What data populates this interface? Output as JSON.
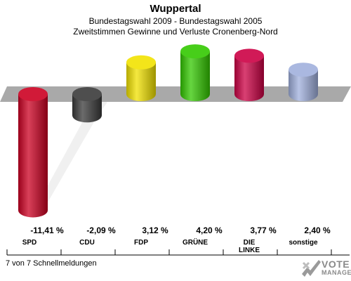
{
  "header": {
    "title": "Wuppertal",
    "subtitle_line1": "Bundestagswahl 2009 - Bundestagswahl 2005",
    "subtitle_line2": "Zweitstimmen Gewinne und Verluste Cronenberg-Nord"
  },
  "footer": {
    "status": "7 von 7 Schnellmeldungen"
  },
  "logo": {
    "line1": "VOTE",
    "line2": "MANAGER"
  },
  "chart_data": {
    "type": "bar",
    "title": "Wuppertal",
    "categories": [
      "SPD",
      "CDU",
      "FDP",
      "GRÜNE",
      "DIE LINKE",
      "sonstige"
    ],
    "category_lines": [
      [
        "SPD"
      ],
      [
        "CDU"
      ],
      [
        "FDP"
      ],
      [
        "GRÜNE"
      ],
      [
        "DIE",
        "LINKE"
      ],
      [
        "sonstige"
      ]
    ],
    "values": [
      -11.41,
      -2.09,
      3.12,
      4.2,
      3.77,
      2.4
    ],
    "value_labels": [
      "-11,41 %",
      "-2,09 %",
      "3,12 %",
      "4,20 %",
      "3,77 %",
      "2,40 %"
    ],
    "colors": [
      "#cc0022",
      "#3a3a3a",
      "#f2e200",
      "#33c800",
      "#cc0044",
      "#a0b0dd"
    ],
    "baseline_color": "#a9a9a9",
    "xlabel": "",
    "ylabel": ""
  }
}
